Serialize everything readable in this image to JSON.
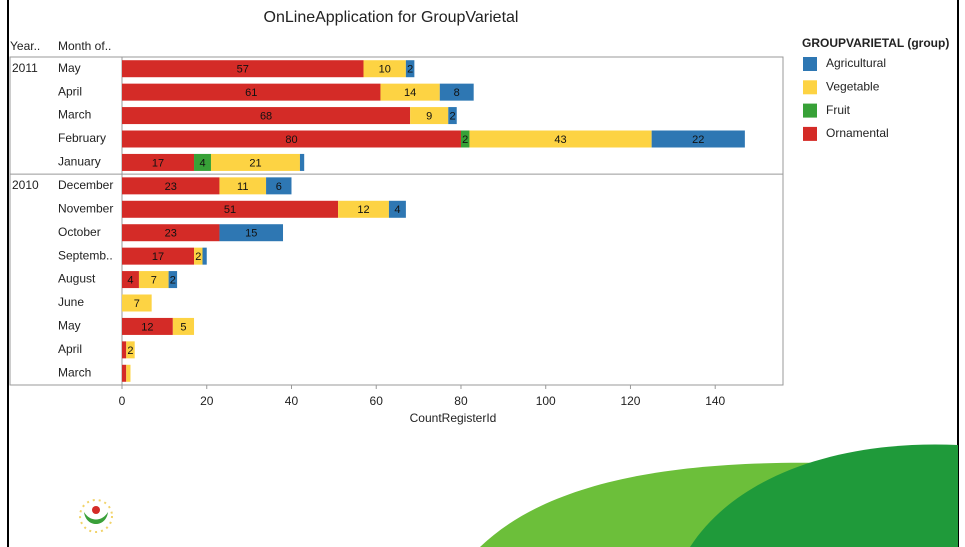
{
  "chart_data": {
    "type": "stacked-barh",
    "title": "OnLineApplication for GroupVarietal",
    "row_headers": [
      "Year..",
      "Month of.."
    ],
    "year_labels": [
      "2011",
      null,
      null,
      null,
      null,
      "2010",
      null,
      null,
      null,
      null,
      null,
      null,
      null,
      null
    ],
    "categories": [
      "May",
      "April",
      "March",
      "February",
      "January",
      "December",
      "November",
      "October",
      "Septemb..",
      "August",
      "June",
      "May",
      "April",
      "March"
    ],
    "series": [
      {
        "name": "Ornamental",
        "color": "#d42b27",
        "values": [
          57,
          61,
          68,
          80,
          17,
          23,
          51,
          23,
          17,
          4,
          null,
          12,
          1,
          1
        ]
      },
      {
        "name": "Fruit",
        "color": "#37a137",
        "values": [
          null,
          null,
          null,
          2,
          4,
          null,
          null,
          null,
          null,
          null,
          null,
          null,
          null,
          null
        ]
      },
      {
        "name": "Vegetable",
        "color": "#fdd343",
        "values": [
          10,
          14,
          9,
          43,
          21,
          11,
          12,
          null,
          2,
          7,
          7,
          5,
          2,
          1
        ]
      },
      {
        "name": "Agricultural",
        "color": "#2e77b3",
        "values": [
          2,
          8,
          2,
          22,
          1,
          6,
          4,
          15,
          1,
          2,
          null,
          null,
          null,
          null
        ]
      }
    ],
    "legend_title": "GROUPVARIETAL (group)",
    "legend_order": [
      3,
      2,
      1,
      0
    ],
    "xlabel": "CountRegisterId",
    "xlim": [
      0,
      156
    ],
    "xticks": [
      0,
      20,
      40,
      60,
      80,
      100,
      120,
      140
    ]
  }
}
